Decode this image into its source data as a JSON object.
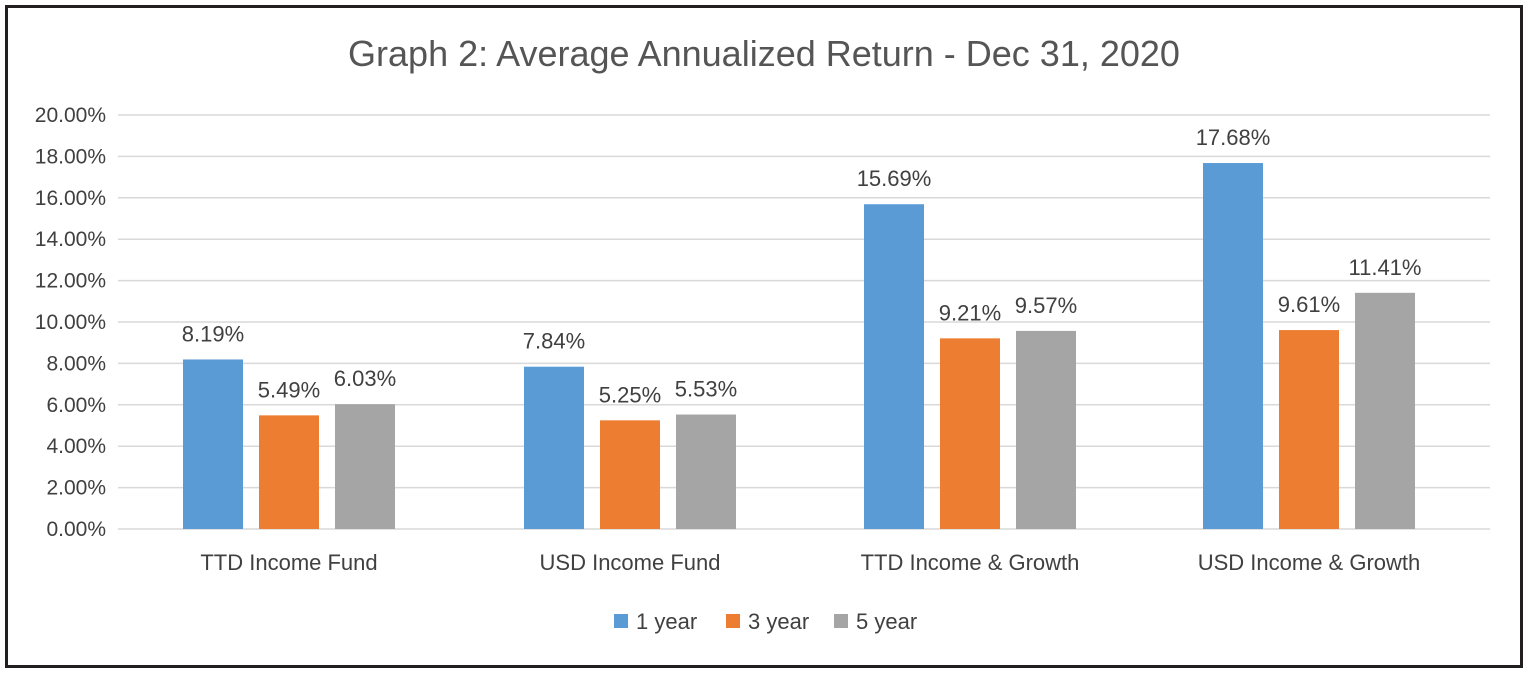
{
  "chart_data": {
    "type": "bar",
    "title": "Graph 2: Average Annualized Return - Dec 31, 2020",
    "xlabel": "",
    "ylabel": "",
    "categories": [
      "TTD Income Fund",
      "USD Income Fund",
      "TTD Income & Growth",
      "USD Income & Growth"
    ],
    "series": [
      {
        "name": "1 year",
        "color": "#5b9bd5",
        "values": [
          8.19,
          7.84,
          15.69,
          17.68
        ],
        "labels": [
          "8.19%",
          "7.84%",
          "15.69%",
          "17.68%"
        ]
      },
      {
        "name": "3 year",
        "color": "#ed7d31",
        "values": [
          5.49,
          5.25,
          9.21,
          9.61
        ],
        "labels": [
          "5.49%",
          "5.25%",
          "9.21%",
          "9.61%"
        ]
      },
      {
        "name": "5 year",
        "color": "#a5a5a5",
        "values": [
          6.03,
          5.53,
          9.57,
          11.41
        ],
        "labels": [
          "6.03%",
          "5.53%",
          "9.57%",
          "11.41%"
        ]
      }
    ],
    "ylim": [
      0,
      20
    ],
    "yticks": [
      0,
      2,
      4,
      6,
      8,
      10,
      12,
      14,
      16,
      18,
      20
    ],
    "ytick_labels": [
      "0.00%",
      "2.00%",
      "4.00%",
      "6.00%",
      "8.00%",
      "10.00%",
      "12.00%",
      "14.00%",
      "16.00%",
      "18.00%",
      "20.00%"
    ],
    "grid": true,
    "legend_position": "bottom",
    "gridline_color": "#d9d9d9",
    "text_color": "#404040",
    "frame_color": "#231f20"
  }
}
